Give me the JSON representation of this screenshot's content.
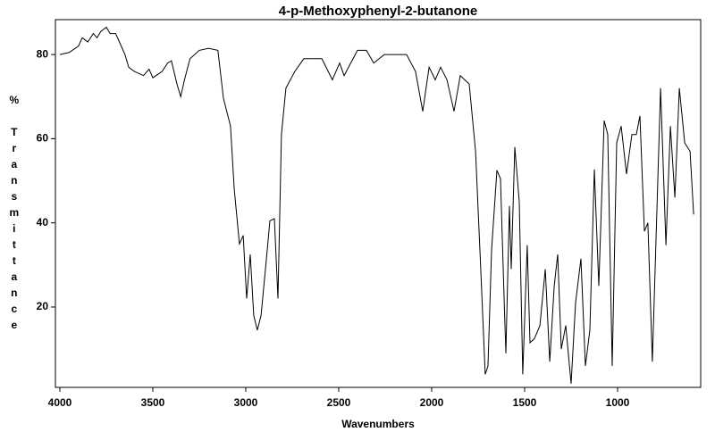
{
  "chart_data": {
    "type": "line",
    "title": "4-p-Methoxyphenyl-2-butanone",
    "xlabel": "Wavenumbers",
    "ylabel": "% Transmittance",
    "xlim": [
      4024,
      553
    ],
    "ylim": [
      0.9,
      88.3
    ],
    "xticks": [
      4000,
      3500,
      3000,
      2500,
      2000,
      1500,
      1000
    ],
    "yticks": [
      20,
      40,
      60,
      80
    ],
    "series": [
      {
        "color": "#000000",
        "x": [
          4000,
          3950,
          3900,
          3880,
          3850,
          3820,
          3800,
          3780,
          3750,
          3730,
          3700,
          3680,
          3650,
          3630,
          3600,
          3550,
          3520,
          3500,
          3450,
          3420,
          3400,
          3370,
          3350,
          3330,
          3300,
          3250,
          3200,
          3150,
          3120,
          3082,
          3062,
          3034,
          3014,
          2995,
          2976,
          2957,
          2938,
          2918,
          2889,
          2870,
          2846,
          2827,
          2808,
          2784,
          2736,
          2688,
          2591,
          2534,
          2495,
          2471,
          2399,
          2351,
          2312,
          2255,
          2135,
          2087,
          2048,
          2014,
          1981,
          1952,
          1918,
          1880,
          1846,
          1798,
          1764,
          1736,
          1712,
          1697,
          1678,
          1649,
          1630,
          1611,
          1601,
          1582,
          1572,
          1553,
          1529,
          1510,
          1486,
          1471,
          1447,
          1418,
          1389,
          1365,
          1341,
          1322,
          1303,
          1279,
          1250,
          1226,
          1197,
          1173,
          1149,
          1125,
          1101,
          1072,
          1053,
          1029,
          1005,
          981,
          952,
          923,
          899,
          880,
          856,
          837,
          813,
          769,
          740,
          716,
          692,
          668,
          639,
          610,
          591
        ],
        "values": [
          80,
          80.5,
          82,
          84,
          83,
          85,
          84,
          85.5,
          86.5,
          85,
          85,
          83,
          80,
          77,
          76,
          75,
          76.5,
          74.5,
          76,
          78,
          78.5,
          73,
          70,
          74,
          79,
          81,
          81.5,
          81,
          69.6,
          63,
          48,
          35,
          37,
          22,
          32.5,
          18,
          14.5,
          18,
          31.5,
          40.5,
          41,
          22,
          61,
          72,
          76,
          79,
          79,
          74,
          78,
          75,
          81,
          81,
          78,
          80,
          80,
          76,
          66.5,
          77,
          74,
          77,
          74,
          66.5,
          75,
          73,
          57,
          29,
          4,
          6,
          33.5,
          52.5,
          50.5,
          23,
          9,
          44,
          29,
          58,
          45,
          4,
          34.7,
          11.5,
          12.5,
          15.6,
          29,
          7,
          25,
          32.5,
          10,
          15.6,
          1.8,
          21,
          31.5,
          6,
          14.5,
          52.7,
          25,
          64.3,
          61,
          6,
          59,
          63,
          51.6,
          61,
          61,
          65.4,
          38,
          40,
          7,
          72,
          34.7,
          63,
          46,
          72,
          59,
          57,
          42
        ]
      }
    ]
  }
}
